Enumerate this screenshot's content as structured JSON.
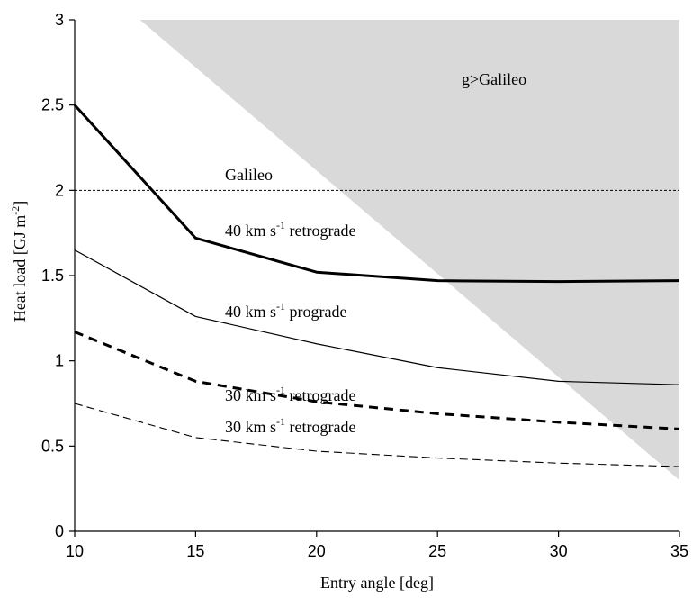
{
  "chart_data": {
    "type": "line",
    "xlabel": "Entry angle [deg]",
    "ylabel": "Heat load [GJ m",
    "ylabel_sup": "-2",
    "ylabel_end": "]",
    "xlim": [
      10,
      35
    ],
    "ylim": [
      0,
      3
    ],
    "xticks": [
      10,
      15,
      20,
      25,
      30,
      35
    ],
    "yticks": [
      0,
      0.5,
      1,
      1.5,
      2,
      2.5,
      3
    ],
    "xtick_labels": [
      "10",
      "15",
      "20",
      "25",
      "30",
      "35"
    ],
    "ytick_labels": [
      "0",
      "0.5",
      "1",
      "1.5",
      "2",
      "2.5",
      "3"
    ],
    "grid": false,
    "region": {
      "label": "g>Galileo",
      "color": "#d9d9d9",
      "polygon": [
        [
          12.7,
          3
        ],
        [
          35,
          3
        ],
        [
          35,
          0.3
        ]
      ]
    },
    "reference_line": {
      "label": "Galileo",
      "y": 2,
      "style": "dotted"
    },
    "series": [
      {
        "label": "40 km s",
        "label_sup": "-1",
        "label_rest": " retrograde",
        "x": [
          10,
          15,
          20,
          25,
          30,
          35
        ],
        "y": [
          2.5,
          1.72,
          1.52,
          1.47,
          1.465,
          1.47
        ],
        "style": "solid",
        "weight": "bold"
      },
      {
        "label": "40 km s",
        "label_sup": "-1",
        "label_rest": " prograde",
        "x": [
          10,
          15,
          20,
          25,
          30,
          35
        ],
        "y": [
          1.65,
          1.26,
          1.1,
          0.96,
          0.88,
          0.86
        ],
        "style": "solid",
        "weight": "thin"
      },
      {
        "label": "30 km s",
        "label_sup": "-1",
        "label_rest": " retrograde",
        "x": [
          10,
          15,
          20,
          25,
          30,
          35
        ],
        "y": [
          1.17,
          0.88,
          0.76,
          0.69,
          0.64,
          0.6
        ],
        "style": "dashed",
        "weight": "bold"
      },
      {
        "label": "30 km s",
        "label_sup": "-1",
        "label_rest": " retrograde",
        "x": [
          10,
          15,
          20,
          25,
          30,
          35
        ],
        "y": [
          0.75,
          0.55,
          0.47,
          0.43,
          0.4,
          0.38
        ],
        "style": "dashed",
        "weight": "thin"
      }
    ]
  }
}
